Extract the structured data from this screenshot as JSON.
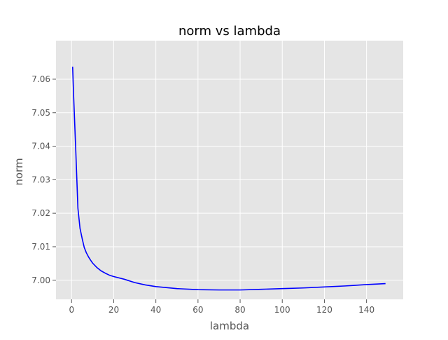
{
  "colors": {
    "plot_background": "#e5e5e5",
    "grid": "#ffffff",
    "line": "#0000ff",
    "tick": "#555555"
  },
  "chart_data": {
    "type": "line",
    "title": "norm vs lambda",
    "xlabel": "lambda",
    "ylabel": "norm",
    "xlim": [
      -7.4,
      157.4
    ],
    "ylim": [
      6.9943,
      7.0715
    ],
    "xticks": [
      0,
      20,
      40,
      60,
      80,
      100,
      120,
      140
    ],
    "xtick_labels": [
      "0",
      "20",
      "40",
      "60",
      "80",
      "100",
      "120",
      "140"
    ],
    "yticks": [
      7.0,
      7.01,
      7.02,
      7.03,
      7.04,
      7.05,
      7.06
    ],
    "ytick_labels": [
      "7.00",
      "7.01",
      "7.02",
      "7.03",
      "7.04",
      "7.05",
      "7.06"
    ],
    "grid": true,
    "legend": "none",
    "series": [
      {
        "color": "#0000ff",
        "x": [
          0.5,
          1,
          2,
          3,
          4,
          5,
          6,
          7,
          8,
          9,
          10,
          12,
          14,
          16,
          18,
          20,
          25,
          30,
          35,
          40,
          50,
          60,
          70,
          80,
          90,
          100,
          110,
          120,
          130,
          140,
          149
        ],
        "y": [
          7.0637,
          7.0545,
          7.0385,
          7.0215,
          7.0155,
          7.0125,
          7.0098,
          7.0082,
          7.007,
          7.006,
          7.0051,
          7.0038,
          7.0028,
          7.0021,
          7.0015,
          7.0011,
          7.0003,
          6.9993,
          6.9986,
          6.9981,
          6.9975,
          6.9972,
          6.9971,
          6.9971,
          6.9973,
          6.9975,
          6.9977,
          6.998,
          6.9983,
          6.9987,
          6.999
        ]
      }
    ]
  }
}
